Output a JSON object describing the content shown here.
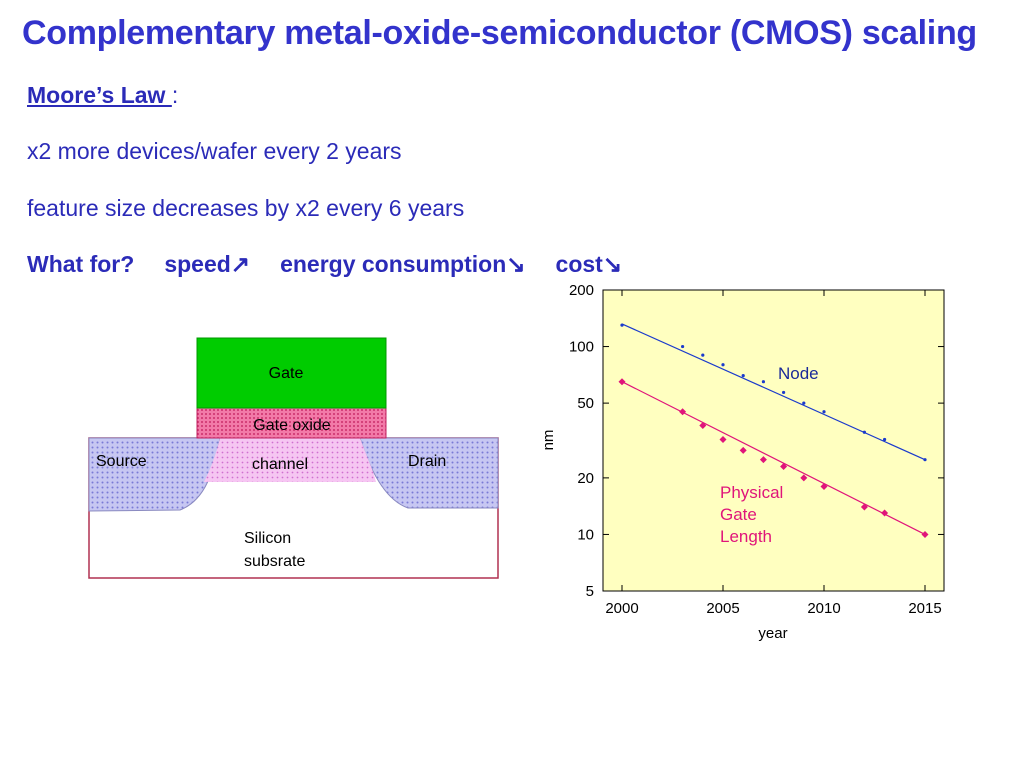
{
  "slide": {
    "title": "Complementary metal-oxide-semiconductor (CMOS) scaling",
    "moore_label": "Moore’s Law ",
    "moore_colon": ":",
    "line1": "x2 more devices/wafer every 2 years",
    "line2": "feature size decreases by x2 every 6 years",
    "what_for": "What for?",
    "speed": "speed↗",
    "energy": "energy consumption↘",
    "cost": "cost↘"
  },
  "transistor": {
    "gate": "Gate",
    "gate_oxide": "Gate oxide",
    "source": "Source",
    "drain": "Drain",
    "channel": "channel",
    "substrate_line1": "Silicon",
    "substrate_line2": "subsrate",
    "colors": {
      "gate": "#00cc00",
      "oxide": "#f06aa0",
      "channel": "#f2b6ee",
      "source_drain": "#a7a7ee",
      "substrate_border": "#b03050"
    }
  },
  "chart_data": {
    "type": "scatter",
    "xlabel": "year",
    "ylabel": "nm",
    "xlim": [
      2000,
      2015
    ],
    "ylim": [
      5,
      200
    ],
    "yscale": "log",
    "x_ticks": [
      2000,
      2005,
      2010,
      2015
    ],
    "y_ticks": [
      5,
      10,
      20,
      50,
      100,
      200
    ],
    "background": "#ffffc0",
    "series": [
      {
        "name": "Node",
        "color": "#1a3acc",
        "marker": "dot",
        "x": [
          2000,
          2003,
          2004,
          2005,
          2006,
          2007,
          2008,
          2009,
          2010,
          2012,
          2013,
          2015
        ],
        "y": [
          130,
          100,
          90,
          80,
          70,
          65,
          57,
          50,
          45,
          35,
          32,
          25
        ],
        "trend": [
          [
            2000,
            132
          ],
          [
            2015,
            25
          ]
        ]
      },
      {
        "name": "Physical Gate Length",
        "color": "#e0157a",
        "marker": "diamond",
        "x": [
          2000,
          2003,
          2004,
          2005,
          2006,
          2007,
          2008,
          2009,
          2010,
          2012,
          2013,
          2015
        ],
        "y": [
          65,
          45,
          38,
          32,
          28,
          25,
          23,
          20,
          18,
          14,
          13,
          10
        ],
        "trend": [
          [
            2000,
            65
          ],
          [
            2015,
            10
          ]
        ]
      }
    ]
  }
}
